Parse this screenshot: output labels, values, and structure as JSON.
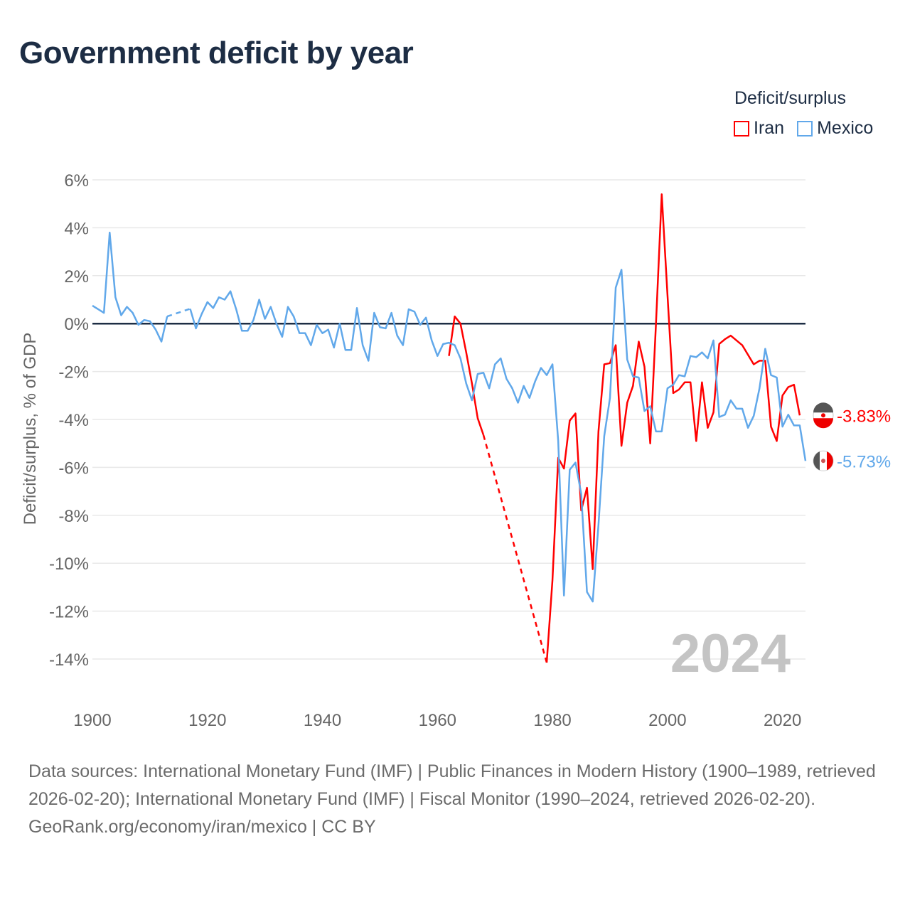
{
  "title": "Government deficit by year",
  "legend": {
    "title": "Deficit/surplus",
    "items": [
      "Iran",
      "Mexico"
    ]
  },
  "colors": {
    "Iran": "#ff0000",
    "Mexico": "#61a8ea",
    "zero": "#1d2d44",
    "grid": "#e8e8e8",
    "year": "#c4c4c4"
  },
  "year_watermark": "2024",
  "end_labels": {
    "Iran": "-3.83%",
    "Mexico": "-5.73%"
  },
  "icons": {
    "Iran": "iran-flag-icon",
    "Mexico": "mexico-flag-icon"
  },
  "footer": {
    "sources": "Data sources: International Monetary Fund (IMF) | Public Finances in Modern History (1900–1989, retrieved 2026-02-20); International Monetary Fund (IMF) | Fiscal Monitor (1990–2024, retrieved 2026-02-20).",
    "credit": "GeoRank.org/economy/iran/mexico | CC BY"
  },
  "chart_data": {
    "type": "line",
    "title": "Government deficit by year",
    "xlabel": "",
    "ylabel": "Deficit/surplus, % of GDP",
    "xlim": [
      1900,
      2024
    ],
    "ylim": [
      -14,
      6
    ],
    "xticks": [
      1900,
      1920,
      1940,
      1960,
      1980,
      2000,
      2020
    ],
    "xtick_labels": [
      "1900",
      "1920",
      "1940",
      "1960",
      "1980",
      "2000",
      "2020"
    ],
    "yticks": [
      6,
      4,
      2,
      0,
      -2,
      -4,
      -6,
      -8,
      -10,
      -12,
      -14
    ],
    "ytick_labels": [
      "6%",
      "4%",
      "2%",
      "0%",
      "-2%",
      "-4%",
      "-6%",
      "-8%",
      "-10%",
      "-12%",
      "-14%"
    ],
    "grid": true,
    "legend_position": "top-right",
    "series": [
      {
        "name": "Iran",
        "start_year": 1962,
        "values": [
          -1.35,
          0.3,
          0.0,
          -1.2,
          -2.5,
          -3.95,
          -4.65,
          null,
          null,
          null,
          null,
          null,
          null,
          null,
          null,
          null,
          null,
          -14.15,
          -10.7,
          -5.6,
          -6.05,
          -4.05,
          -3.75,
          -7.8,
          -6.85,
          -10.25,
          -4.5,
          -1.7,
          -1.65,
          -0.9,
          -5.1,
          -3.3,
          -2.6,
          -0.75,
          -1.8,
          -5.0,
          0.0,
          5.4,
          1.2,
          -2.9,
          -2.75,
          -2.45,
          -2.45,
          -4.9,
          -2.45,
          -4.35,
          -3.7,
          -0.85,
          -0.65,
          -0.5,
          -0.7,
          -0.9,
          -1.3,
          -1.7,
          -1.55,
          -1.55,
          -4.3,
          -4.9,
          -3.0,
          -2.65,
          -2.55,
          -3.83
        ]
      },
      {
        "name": "Mexico",
        "start_year": 1900,
        "values": [
          0.75,
          0.6,
          0.45,
          3.8,
          1.1,
          0.35,
          0.7,
          0.45,
          -0.05,
          0.15,
          0.1,
          -0.25,
          -0.75,
          0.3,
          null,
          null,
          null,
          0.62,
          -0.2,
          0.4,
          0.9,
          0.65,
          1.1,
          1.0,
          1.35,
          0.6,
          -0.3,
          -0.3,
          0.15,
          1.0,
          0.2,
          0.7,
          0.0,
          -0.55,
          0.7,
          0.3,
          -0.4,
          -0.4,
          -0.9,
          -0.05,
          -0.4,
          -0.25,
          -1.0,
          0.0,
          -1.1,
          -1.1,
          0.65,
          -0.9,
          -1.55,
          0.45,
          -0.15,
          -0.2,
          0.45,
          -0.5,
          -0.9,
          0.6,
          0.5,
          -0.05,
          0.25,
          -0.7,
          -1.35,
          -0.85,
          -0.8,
          -0.9,
          -1.45,
          -2.5,
          -3.2,
          -2.1,
          -2.05,
          -2.7,
          -1.7,
          -1.45,
          -2.3,
          -2.7,
          -3.3,
          -2.6,
          -3.1,
          -2.4,
          -1.85,
          -2.15,
          -1.7,
          -4.9,
          -11.35,
          -6.1,
          -5.8,
          -7.1,
          -11.2,
          -11.6,
          -8.4,
          -4.7,
          -3.1,
          1.5,
          2.25,
          -1.5,
          -2.2,
          -2.25,
          -3.65,
          -3.45,
          -4.5,
          -4.5,
          -2.7,
          -2.55,
          -2.15,
          -2.2,
          -1.35,
          -1.4,
          -1.2,
          -1.45,
          -0.7,
          -3.9,
          -3.8,
          -3.2,
          -3.55,
          -3.55,
          -4.35,
          -3.85,
          -2.7,
          -1.05,
          -2.15,
          -2.25,
          -4.3,
          -3.8,
          -4.25,
          -4.25,
          -5.73
        ]
      }
    ]
  }
}
